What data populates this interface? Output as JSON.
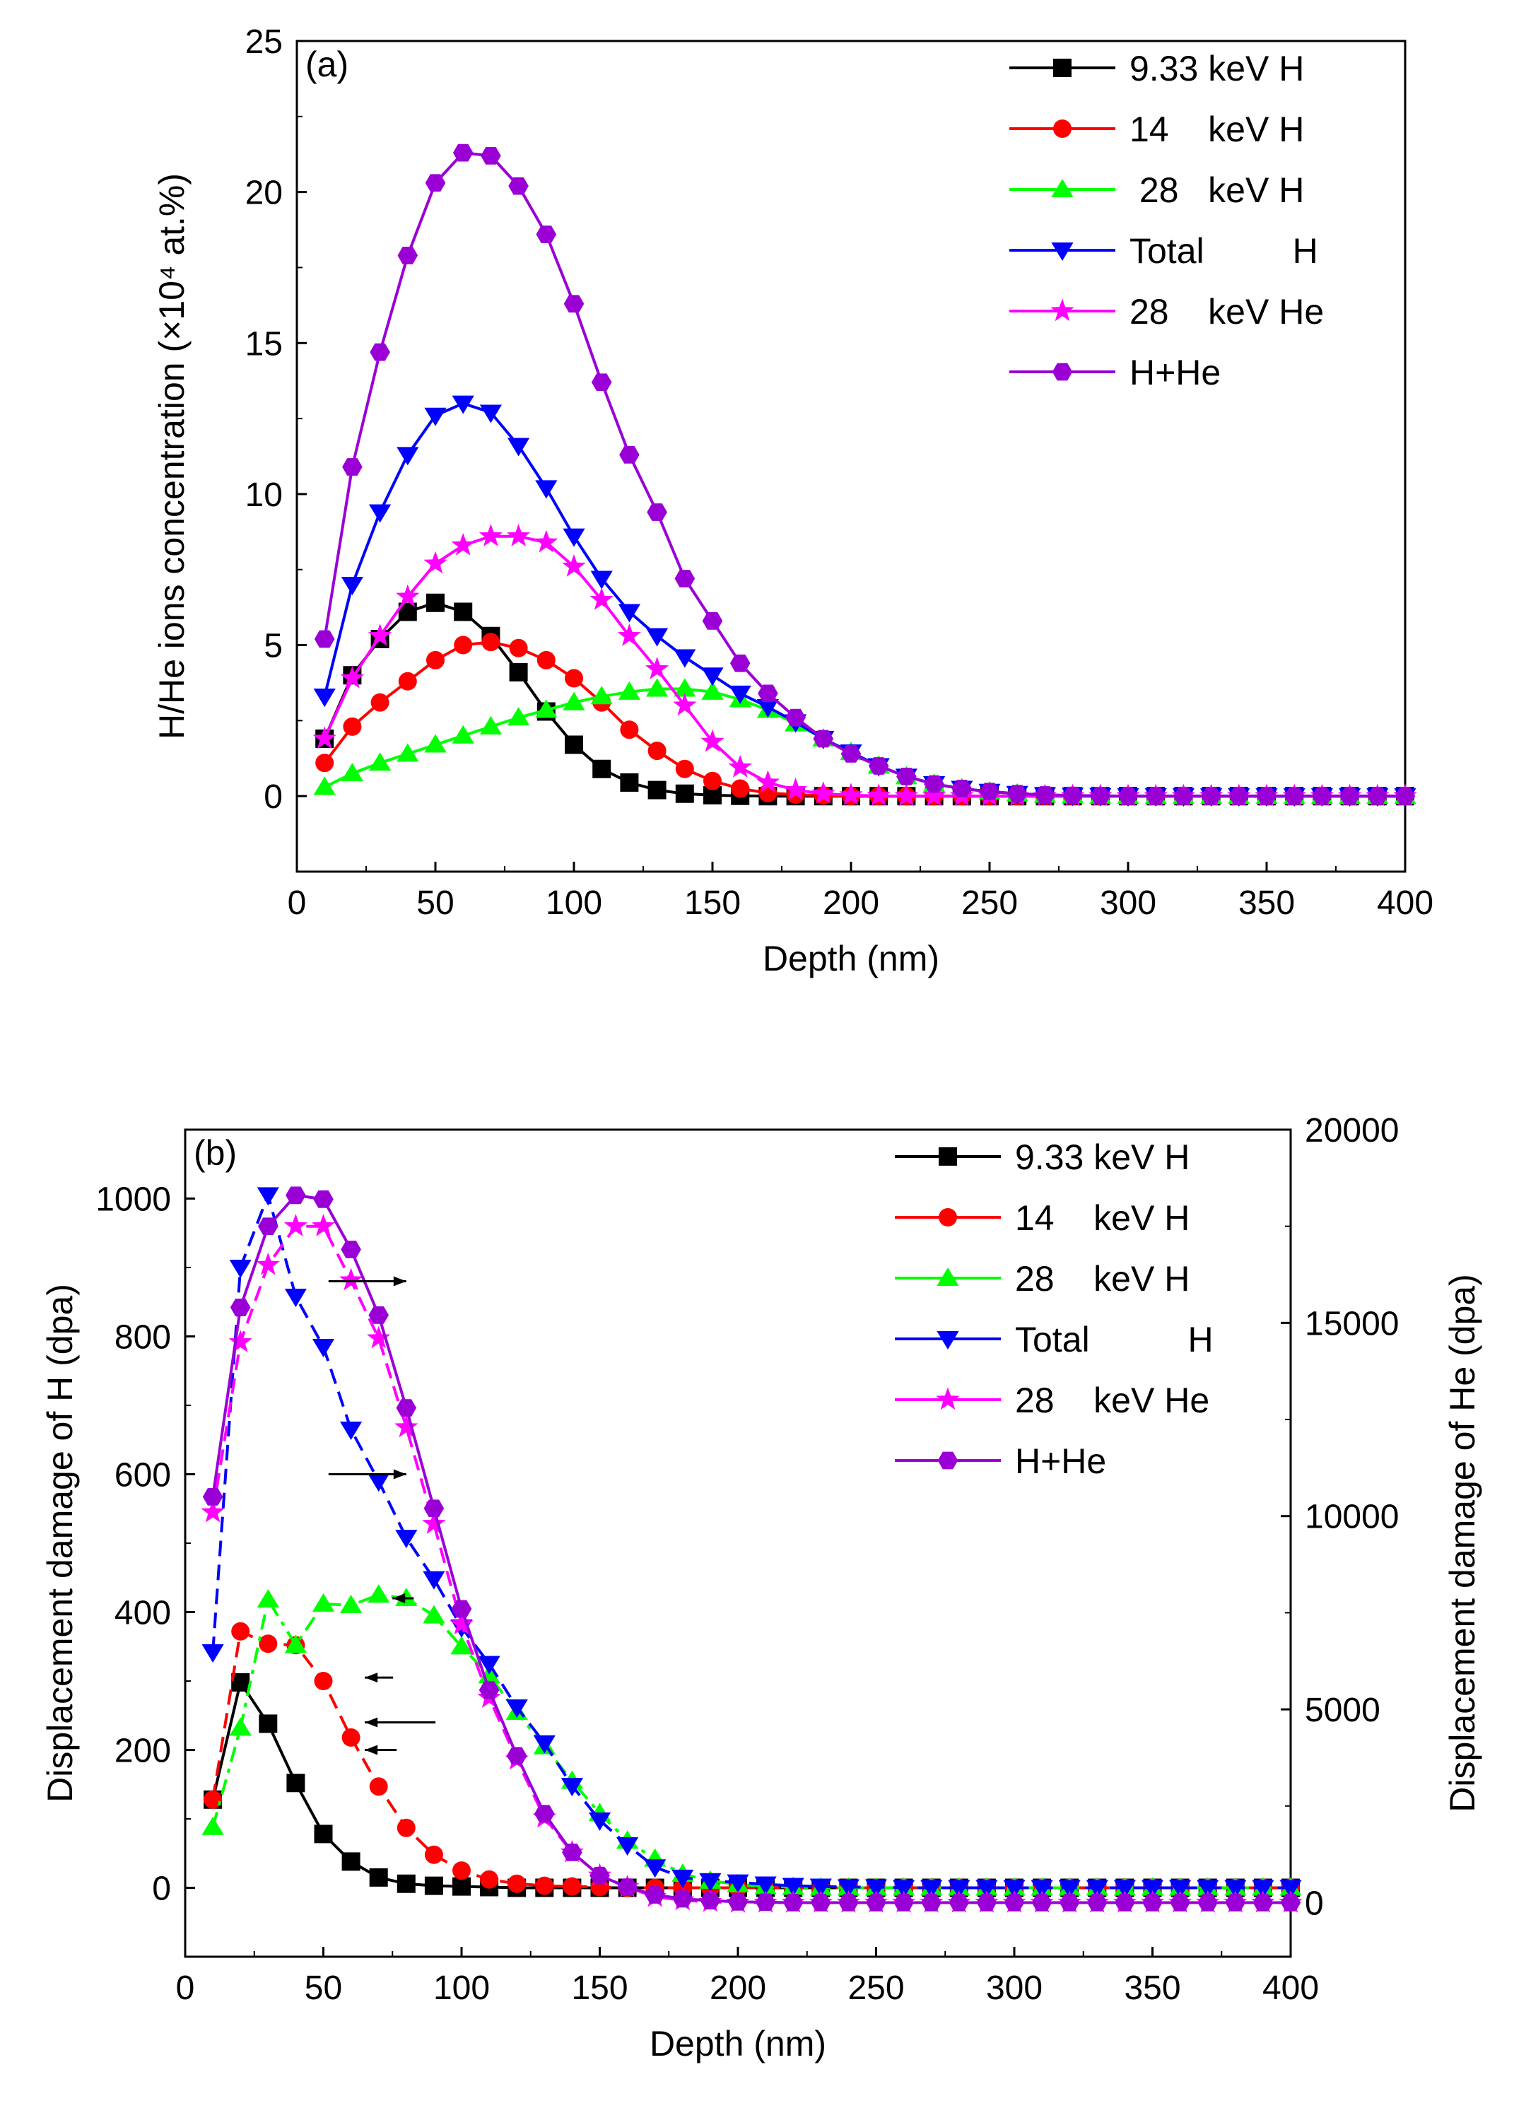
{
  "figure": {
    "panels": [
      "(a)",
      "(b)"
    ]
  },
  "chart_data": [
    {
      "type": "line",
      "panel_label": "(a)",
      "xlabel": "Depth (nm)",
      "ylabel": "H/He ions concentration (×10⁴ at.%)",
      "xlim": [
        0,
        400
      ],
      "ylim": [
        -2.5,
        25
      ],
      "xticks": [
        0,
        50,
        100,
        150,
        200,
        250,
        300,
        350,
        400
      ],
      "yticks": [
        0,
        5,
        10,
        15,
        20,
        25
      ],
      "legend_position": "top-right",
      "x": [
        10,
        20,
        30,
        40,
        50,
        60,
        70,
        80,
        90,
        100,
        110,
        120,
        130,
        140,
        150,
        160,
        170,
        180,
        190,
        200,
        210,
        220,
        230,
        240,
        250,
        260,
        270,
        280,
        290,
        300,
        310,
        320,
        330,
        340,
        350,
        360,
        370,
        380,
        390,
        400
      ],
      "series": [
        {
          "name": "9.33 keV H",
          "color": "#000000",
          "marker": "square",
          "values": [
            1.9,
            4.0,
            5.2,
            6.1,
            6.4,
            6.1,
            5.3,
            4.1,
            2.8,
            1.7,
            0.9,
            0.45,
            0.2,
            0.08,
            0.03,
            0.01,
            0,
            0,
            0,
            0,
            0,
            0,
            0,
            0,
            0,
            0,
            0,
            0,
            0,
            0,
            0,
            0,
            0,
            0,
            0,
            0,
            0,
            0,
            0,
            0
          ]
        },
        {
          "name": "14    keV H",
          "color": "#ff0000",
          "marker": "circle",
          "values": [
            1.1,
            2.3,
            3.1,
            3.8,
            4.5,
            5.0,
            5.1,
            4.9,
            4.5,
            3.9,
            3.1,
            2.2,
            1.5,
            0.9,
            0.5,
            0.25,
            0.1,
            0.05,
            0.02,
            0,
            0,
            0,
            0,
            0,
            0,
            0,
            0,
            0,
            0,
            0,
            0,
            0,
            0,
            0,
            0,
            0,
            0,
            0,
            0,
            0
          ]
        },
        {
          "name": " 28   keV H",
          "color": "#00ff00",
          "marker": "triangle-up",
          "values": [
            0.3,
            0.75,
            1.1,
            1.4,
            1.7,
            2.0,
            2.3,
            2.6,
            2.85,
            3.1,
            3.3,
            3.45,
            3.55,
            3.55,
            3.45,
            3.2,
            2.85,
            2.4,
            1.9,
            1.45,
            1.0,
            0.65,
            0.4,
            0.25,
            0.15,
            0.08,
            0.04,
            0.02,
            0.01,
            0,
            0,
            0,
            0,
            0,
            0,
            0,
            0,
            0,
            0,
            0
          ]
        },
        {
          "name": "Total         H",
          "color": "#0000ff",
          "marker": "triangle-down",
          "values": [
            3.3,
            7.0,
            9.4,
            11.3,
            12.6,
            13.0,
            12.7,
            11.6,
            10.2,
            8.6,
            7.2,
            6.1,
            5.3,
            4.6,
            4.0,
            3.4,
            2.95,
            2.45,
            1.9,
            1.45,
            1.0,
            0.65,
            0.4,
            0.25,
            0.15,
            0.08,
            0.04,
            0.02,
            0.01,
            0,
            0,
            0,
            0,
            0,
            0,
            0,
            0,
            0,
            0,
            0
          ]
        },
        {
          "name": "28    keV He",
          "color": "#ff00ff",
          "marker": "star",
          "values": [
            1.9,
            3.9,
            5.3,
            6.6,
            7.7,
            8.3,
            8.6,
            8.6,
            8.4,
            7.6,
            6.5,
            5.3,
            4.2,
            3.0,
            1.8,
            0.95,
            0.45,
            0.2,
            0.08,
            0.03,
            0.01,
            0,
            0,
            0,
            0,
            0,
            0,
            0,
            0,
            0,
            0,
            0,
            0,
            0,
            0,
            0,
            0,
            0,
            0,
            0
          ]
        },
        {
          "name": "H+He",
          "color": "#9a00d6",
          "marker": "hexagon",
          "values": [
            5.2,
            10.9,
            14.7,
            17.9,
            20.3,
            21.3,
            21.2,
            20.2,
            18.6,
            16.3,
            13.7,
            11.3,
            9.4,
            7.2,
            5.8,
            4.4,
            3.4,
            2.6,
            1.9,
            1.4,
            1.0,
            0.65,
            0.4,
            0.25,
            0.15,
            0.08,
            0.04,
            0.02,
            0.01,
            0,
            0,
            0,
            0,
            0,
            0,
            0,
            0,
            0,
            0,
            0
          ]
        }
      ]
    },
    {
      "type": "line",
      "panel_label": "(b)",
      "xlabel": "Depth (nm)",
      "ylabel": "Displacement damage of H (dpa)",
      "ylabel_right": "Displacement damage of He (dpa)",
      "xlim": [
        0,
        400
      ],
      "ylim": [
        -100,
        1100
      ],
      "ylim_right": [
        -1400,
        20000
      ],
      "xticks": [
        0,
        50,
        100,
        150,
        200,
        250,
        300,
        350,
        400
      ],
      "yticks": [
        0,
        200,
        400,
        600,
        800,
        1000
      ],
      "yticks_right": [
        0,
        5000,
        10000,
        15000,
        20000
      ],
      "legend_position": "top-right",
      "x": [
        10,
        20,
        30,
        40,
        50,
        60,
        70,
        80,
        90,
        100,
        110,
        120,
        130,
        140,
        150,
        160,
        170,
        180,
        190,
        200,
        210,
        220,
        230,
        240,
        250,
        260,
        270,
        280,
        290,
        300,
        310,
        320,
        330,
        340,
        350,
        360,
        370,
        380,
        390,
        400
      ],
      "series": [
        {
          "name": "9.33 keV H",
          "color": "#000000",
          "marker": "square",
          "axis": "left",
          "line_style": "solid",
          "values": [
            128,
            298,
            238,
            152,
            78,
            38,
            15,
            6,
            3,
            2,
            1,
            0,
            0,
            0,
            0,
            0,
            0,
            0,
            0,
            0,
            0,
            0,
            0,
            0,
            0,
            0,
            0,
            0,
            0,
            0,
            0,
            0,
            0,
            0,
            0,
            0,
            0,
            0,
            0,
            0
          ]
        },
        {
          "name": "14    keV H",
          "color": "#ff0000",
          "marker": "circle",
          "axis": "left",
          "line_style": "dash",
          "values": [
            128,
            372,
            354,
            352,
            300,
            218,
            147,
            87,
            48,
            25,
            12,
            6,
            3,
            2,
            1,
            0,
            0,
            0,
            0,
            0,
            0,
            0,
            0,
            0,
            0,
            0,
            0,
            0,
            0,
            0,
            0,
            0,
            0,
            0,
            0,
            0,
            0,
            0,
            0,
            0
          ]
        },
        {
          "name": "28    keV H",
          "color": "#00ff00",
          "marker": "triangle-up",
          "axis": "left",
          "line_style": "dashdot",
          "values": [
            88,
            232,
            418,
            352,
            412,
            410,
            425,
            420,
            395,
            350,
            308,
            255,
            205,
            155,
            108,
            68,
            42,
            20,
            10,
            5,
            2,
            1,
            0,
            0,
            0,
            0,
            0,
            0,
            0,
            0,
            0,
            0,
            0,
            0,
            0,
            0,
            0,
            0,
            0,
            0
          ]
        },
        {
          "name": "Total          H",
          "color": "#0000ff",
          "marker": "triangle-down",
          "axis": "left",
          "line_style": "dash",
          "values": [
            342,
            900,
            1005,
            858,
            785,
            665,
            590,
            508,
            448,
            378,
            325,
            262,
            210,
            148,
            98,
            62,
            30,
            15,
            10,
            8,
            5,
            3,
            2,
            1,
            1,
            0,
            0,
            0,
            0,
            0,
            0,
            0,
            0,
            0,
            0,
            0,
            0,
            0,
            0,
            0
          ]
        },
        {
          "name": "28    keV He",
          "color": "#ff00ff",
          "marker": "star",
          "axis": "right",
          "line_style": "dash",
          "values": [
            10100,
            14500,
            16500,
            17500,
            17500,
            16100,
            14600,
            12300,
            9800,
            7200,
            5300,
            3700,
            2200,
            1300,
            700,
            400,
            150,
            60,
            20,
            0,
            0,
            0,
            0,
            0,
            0,
            0,
            0,
            0,
            0,
            0,
            0,
            0,
            0,
            0,
            0,
            0,
            0,
            0,
            0,
            0
          ]
        },
        {
          "name": "H+He",
          "color": "#9a00d6",
          "marker": "hexagon",
          "axis": "right",
          "line_style": "solid",
          "values": [
            10500,
            15400,
            17500,
            18300,
            18200,
            16900,
            15200,
            12800,
            10200,
            7600,
            5500,
            3800,
            2300,
            1300,
            700,
            400,
            200,
            100,
            50,
            20,
            10,
            0,
            0,
            0,
            0,
            0,
            0,
            0,
            0,
            0,
            0,
            0,
            0,
            0,
            0,
            0,
            0,
            0,
            0,
            0
          ]
        }
      ],
      "annotations": [
        {
          "type": "arrow",
          "direction": "left",
          "target": "28 keV H"
        },
        {
          "type": "arrow",
          "direction": "left",
          "target": "Total H"
        },
        {
          "type": "arrow",
          "direction": "left",
          "target": "14 keV H"
        },
        {
          "type": "arrow",
          "direction": "left",
          "target": "9.33 keV H"
        },
        {
          "type": "arrow",
          "direction": "right",
          "target": "H+He"
        },
        {
          "type": "arrow",
          "direction": "right",
          "target": "28 keV He"
        }
      ]
    }
  ]
}
